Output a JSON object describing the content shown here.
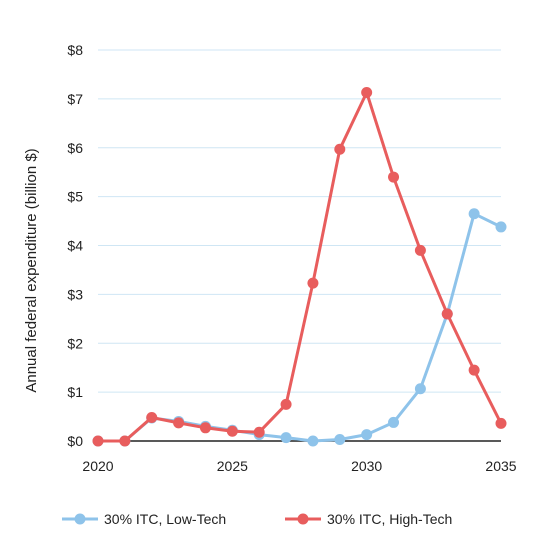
{
  "chart_data": {
    "type": "line",
    "ylabel": "Annual federal expenditure (billion $)",
    "xlabel": "",
    "xlim": [
      2020,
      2035
    ],
    "ylim": [
      0,
      8
    ],
    "x_ticks": [
      2020,
      2025,
      2030,
      2035
    ],
    "x_tick_labels": [
      "2020",
      "2025",
      "2030",
      "2035"
    ],
    "y_ticks": [
      0,
      1,
      2,
      3,
      4,
      5,
      6,
      7,
      8
    ],
    "y_tick_labels": [
      "$0",
      "$1",
      "$2",
      "$3",
      "$4",
      "$5",
      "$6",
      "$7",
      "$8"
    ],
    "grid": "horizontal",
    "legend_position": "bottom",
    "x": [
      2020,
      2021,
      2022,
      2023,
      2024,
      2025,
      2026,
      2027,
      2028,
      2029,
      2030,
      2031,
      2032,
      2033,
      2034,
      2035
    ],
    "series": [
      {
        "name": "30% ITC, Low-Tech",
        "color": "#8ec3ea",
        "values": [
          0,
          0,
          0.47,
          0.4,
          0.3,
          0.22,
          0.13,
          0.07,
          0.0,
          0.03,
          0.13,
          0.38,
          1.07,
          2.6,
          4.65,
          4.38
        ]
      },
      {
        "name": "30% ITC, High-Tech",
        "color": "#e85d5d",
        "values": [
          0,
          0,
          0.48,
          0.37,
          0.27,
          0.2,
          0.18,
          0.75,
          3.23,
          5.97,
          7.13,
          5.4,
          3.9,
          2.6,
          1.45,
          0.36
        ]
      }
    ]
  }
}
